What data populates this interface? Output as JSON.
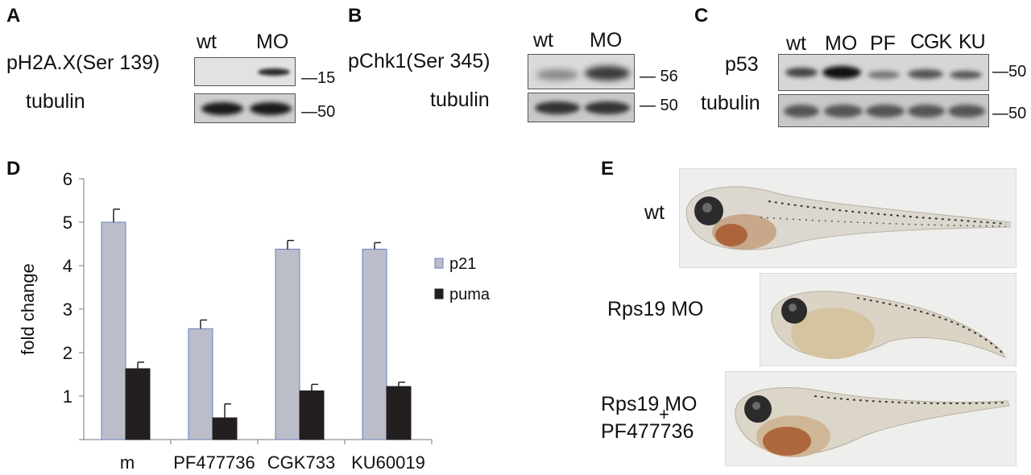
{
  "panels": {
    "A": {
      "letter": "A",
      "lanes": [
        "wt",
        "MO"
      ],
      "row1_label": "pH2A.X(Ser 139)",
      "row2_label": "tubulin",
      "marker1": "—15",
      "marker2": "—50"
    },
    "B": {
      "letter": "B",
      "lanes": [
        "wt",
        "MO"
      ],
      "row1_label": "pChk1(Ser 345)",
      "row2_label": "tubulin",
      "marker1": "— 56",
      "marker2": "— 50"
    },
    "C": {
      "letter": "C",
      "lanes": [
        "wt",
        "MO",
        "PF",
        "CGK",
        "KU"
      ],
      "row1_label": "p53",
      "row2_label": "tubulin",
      "marker1": "—50",
      "marker2": "—50"
    },
    "D": {
      "letter": "D"
    },
    "E": {
      "letter": "E",
      "labels": [
        "wt",
        "Rps19 MO",
        "Rps19 MO",
        "+",
        "PF477736"
      ]
    }
  },
  "chart_data": {
    "type": "bar",
    "categories": [
      "m",
      "PF477736",
      "CGK733",
      "KU60019"
    ],
    "ylabel": "fold change",
    "xlabel": "",
    "ylim": [
      0,
      6
    ],
    "yticks": [
      1,
      2,
      3,
      4,
      5,
      6
    ],
    "legend_position": "right",
    "grid": false,
    "series": [
      {
        "name": "p21",
        "values": [
          5.0,
          2.55,
          4.38,
          4.38
        ],
        "errors": [
          0.3,
          0.2,
          0.2,
          0.15
        ],
        "color": "#bbbdc8"
      },
      {
        "name": "puma",
        "values": [
          1.63,
          0.5,
          1.12,
          1.22
        ],
        "errors": [
          0.15,
          0.32,
          0.15,
          0.1
        ],
        "color": "#231f20"
      }
    ]
  }
}
